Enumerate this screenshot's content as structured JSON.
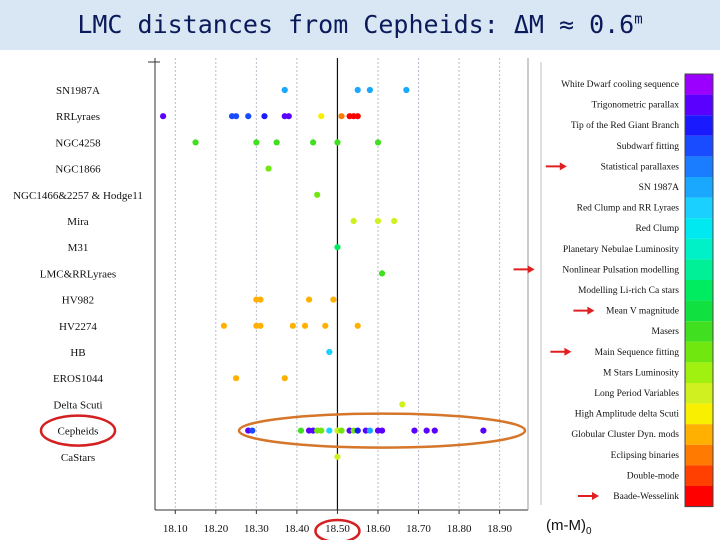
{
  "slide": {
    "title": "LMC distances from Cepheids: ΔM ≈ 0.6",
    "title_sup": "m"
  },
  "chart_data": {
    "type": "scatter",
    "title": "LMC distances from Cepheids: ΔM ≈ 0.6m",
    "xlabel": "(m-M)",
    "xlabel_sub": "0",
    "xlim": [
      18.05,
      18.97
    ],
    "xticks": [
      18.1,
      18.2,
      18.3,
      18.4,
      18.5,
      18.6,
      18.7,
      18.8,
      18.9
    ],
    "xtick_labels": [
      "18.10",
      "18.20",
      "18.30",
      "18.40",
      "18.50",
      "18.60",
      "18.70",
      "18.80",
      "18.90"
    ],
    "reference_line": 18.5,
    "highlighted_tick": "18.50",
    "highlighted_row": "Cepheids",
    "categories": [
      "SN1987A",
      "RRLyraes",
      "NGC4258",
      "NGC1866",
      "NGC1466&2257 & Hodge11",
      "Mira",
      "M31",
      "LMC&RRLyraes",
      "HV982",
      "HV2274",
      "HB",
      "EROS1044",
      "Delta Scuti",
      "Cepheids",
      "CaStars"
    ],
    "points": [
      {
        "row": "SN1987A",
        "x": 18.37,
        "method": "SN 1987A"
      },
      {
        "row": "SN1987A",
        "x": 18.55,
        "method": "SN 1987A"
      },
      {
        "row": "SN1987A",
        "x": 18.58,
        "method": "SN 1987A"
      },
      {
        "row": "SN1987A",
        "x": 18.67,
        "method": "SN 1987A"
      },
      {
        "row": "RRLyraes",
        "x": 18.07,
        "method": "Trigonometric parallax"
      },
      {
        "row": "RRLyraes",
        "x": 18.24,
        "method": "Subdwarf fitting"
      },
      {
        "row": "RRLyraes",
        "x": 18.25,
        "method": "Subdwarf fitting"
      },
      {
        "row": "RRLyraes",
        "x": 18.28,
        "method": "Subdwarf fitting"
      },
      {
        "row": "RRLyraes",
        "x": 18.32,
        "method": "Tip of the Red Giant Branch"
      },
      {
        "row": "RRLyraes",
        "x": 18.37,
        "method": "Trigonometric parallax"
      },
      {
        "row": "RRLyraes",
        "x": 18.38,
        "method": "Trigonometric parallax"
      },
      {
        "row": "RRLyraes",
        "x": 18.46,
        "method": "High Amplitude delta Scuti"
      },
      {
        "row": "RRLyraes",
        "x": 18.51,
        "method": "Eclipsing binaries"
      },
      {
        "row": "RRLyraes",
        "x": 18.53,
        "method": "Baade-Wesselink"
      },
      {
        "row": "RRLyraes",
        "x": 18.54,
        "method": "Baade-Wesselink"
      },
      {
        "row": "RRLyraes",
        "x": 18.55,
        "method": "Baade-Wesselink"
      },
      {
        "row": "NGC4258",
        "x": 18.15,
        "method": "Masers"
      },
      {
        "row": "NGC4258",
        "x": 18.3,
        "method": "Masers"
      },
      {
        "row": "NGC4258",
        "x": 18.35,
        "method": "Masers"
      },
      {
        "row": "NGC4258",
        "x": 18.44,
        "method": "Masers"
      },
      {
        "row": "NGC4258",
        "x": 18.5,
        "method": "Masers"
      },
      {
        "row": "NGC4258",
        "x": 18.6,
        "method": "Masers"
      },
      {
        "row": "NGC1866",
        "x": 18.33,
        "method": "Main Sequence fitting"
      },
      {
        "row": "NGC1466&2257 & Hodge11",
        "x": 18.45,
        "method": "Main Sequence fitting"
      },
      {
        "row": "Mira",
        "x": 18.54,
        "method": "Long Period Variables"
      },
      {
        "row": "Mira",
        "x": 18.6,
        "method": "Long Period Variables"
      },
      {
        "row": "Mira",
        "x": 18.64,
        "method": "Long Period Variables"
      },
      {
        "row": "M31",
        "x": 18.5,
        "method": "Modelling Li-rich Ca stars"
      },
      {
        "row": "LMC&RRLyraes",
        "x": 18.61,
        "method": "Masers"
      },
      {
        "row": "HV982",
        "x": 18.3,
        "method": "Globular Cluster Dyn. mods"
      },
      {
        "row": "HV982",
        "x": 18.31,
        "method": "Globular Cluster Dyn. mods"
      },
      {
        "row": "HV982",
        "x": 18.43,
        "method": "Globular Cluster Dyn. mods"
      },
      {
        "row": "HV982",
        "x": 18.49,
        "method": "Globular Cluster Dyn. mods"
      },
      {
        "row": "HV2274",
        "x": 18.22,
        "method": "Globular Cluster Dyn. mods"
      },
      {
        "row": "HV2274",
        "x": 18.3,
        "method": "Globular Cluster Dyn. mods"
      },
      {
        "row": "HV2274",
        "x": 18.31,
        "method": "Globular Cluster Dyn. mods"
      },
      {
        "row": "HV2274",
        "x": 18.39,
        "method": "Globular Cluster Dyn. mods"
      },
      {
        "row": "HV2274",
        "x": 18.42,
        "method": "Globular Cluster Dyn. mods"
      },
      {
        "row": "HV2274",
        "x": 18.47,
        "method": "Globular Cluster Dyn. mods"
      },
      {
        "row": "HV2274",
        "x": 18.55,
        "method": "Globular Cluster Dyn. mods"
      },
      {
        "row": "HB",
        "x": 18.48,
        "method": "Red Clump and RR Lyraes"
      },
      {
        "row": "EROS1044",
        "x": 18.25,
        "method": "Globular Cluster Dyn. mods"
      },
      {
        "row": "EROS1044",
        "x": 18.37,
        "method": "Globular Cluster Dyn. mods"
      },
      {
        "row": "Delta Scuti",
        "x": 18.66,
        "method": "Long Period Variables"
      },
      {
        "row": "Cepheids",
        "x": 18.28,
        "method": "Trigonometric parallax"
      },
      {
        "row": "Cepheids",
        "x": 18.29,
        "method": "Subdwarf fitting"
      },
      {
        "row": "Cepheids",
        "x": 18.41,
        "method": "Masers"
      },
      {
        "row": "Cepheids",
        "x": 18.43,
        "method": "Trigonometric parallax"
      },
      {
        "row": "Cepheids",
        "x": 18.44,
        "method": "Trigonometric parallax"
      },
      {
        "row": "Cepheids",
        "x": 18.45,
        "method": "Main Sequence fitting"
      },
      {
        "row": "Cepheids",
        "x": 18.46,
        "method": "Main Sequence fitting"
      },
      {
        "row": "Cepheids",
        "x": 18.48,
        "method": "Red Clump and RR Lyraes"
      },
      {
        "row": "Cepheids",
        "x": 18.5,
        "method": "Long Period Variables"
      },
      {
        "row": "Cepheids",
        "x": 18.51,
        "method": "Main Sequence fitting"
      },
      {
        "row": "Cepheids",
        "x": 18.53,
        "method": "Trigonometric parallax"
      },
      {
        "row": "Cepheids",
        "x": 18.54,
        "method": "Main Sequence fitting"
      },
      {
        "row": "Cepheids",
        "x": 18.55,
        "method": "Tip of the Red Giant Branch"
      },
      {
        "row": "Cepheids",
        "x": 18.57,
        "method": "Trigonometric parallax"
      },
      {
        "row": "Cepheids",
        "x": 18.58,
        "method": "SN 1987A"
      },
      {
        "row": "Cepheids",
        "x": 18.6,
        "method": "Trigonometric parallax"
      },
      {
        "row": "Cepheids",
        "x": 18.61,
        "method": "Trigonometric parallax"
      },
      {
        "row": "Cepheids",
        "x": 18.69,
        "method": "Trigonometric parallax"
      },
      {
        "row": "Cepheids",
        "x": 18.72,
        "method": "Trigonometric parallax"
      },
      {
        "row": "Cepheids",
        "x": 18.74,
        "method": "Trigonometric parallax"
      },
      {
        "row": "Cepheids",
        "x": 18.86,
        "method": "Trigonometric parallax"
      },
      {
        "row": "CaStars",
        "x": 18.5,
        "method": "Long Period Variables"
      }
    ],
    "legend": [
      {
        "label": "White Dwarf cooling sequence",
        "color": "#9b00ff",
        "arrow": false
      },
      {
        "label": "Trigonometric parallax",
        "color": "#5a00ff",
        "arrow": false
      },
      {
        "label": "Tip of the Red Giant Branch",
        "color": "#1a1aff",
        "arrow": false
      },
      {
        "label": "Subdwarf fitting",
        "color": "#1a4cff",
        "arrow": false
      },
      {
        "label": "Statistical parallaxes",
        "color": "#1a7cff",
        "arrow": true
      },
      {
        "label": "SN 1987A",
        "color": "#1aa8ff",
        "arrow": false
      },
      {
        "label": "Red Clump and RR Lyraes",
        "color": "#1ad0ff",
        "arrow": false
      },
      {
        "label": "Red Clump",
        "color": "#00e8f0",
        "arrow": false
      },
      {
        "label": "Planetary Nebulae Luminosity",
        "color": "#00f0c8",
        "arrow": false
      },
      {
        "label": "Nonlinear Pulsation modelling",
        "color": "#00f098",
        "arrow": true
      },
      {
        "label": "Modelling Li-rich Ca stars",
        "color": "#00ec60",
        "arrow": false
      },
      {
        "label": "Mean V magnitude",
        "color": "#10e040",
        "arrow": true
      },
      {
        "label": "Masers",
        "color": "#40e020",
        "arrow": false
      },
      {
        "label": "Main Sequence fitting",
        "color": "#70e810",
        "arrow": true
      },
      {
        "label": "M Stars Luminosity",
        "color": "#a0f010",
        "arrow": false
      },
      {
        "label": "Long Period Variables",
        "color": "#d0f020",
        "arrow": false
      },
      {
        "label": "High Amplitude delta Scuti",
        "color": "#f8f000",
        "arrow": false
      },
      {
        "label": "Globular Cluster Dyn. mods",
        "color": "#ffb000",
        "arrow": false
      },
      {
        "label": "Eclipsing binaries",
        "color": "#ff7a00",
        "arrow": false
      },
      {
        "label": "Double-mode",
        "color": "#ff4000",
        "arrow": false
      },
      {
        "label": "Baade-Wesselink",
        "color": "#ff0000",
        "arrow": true
      }
    ]
  }
}
